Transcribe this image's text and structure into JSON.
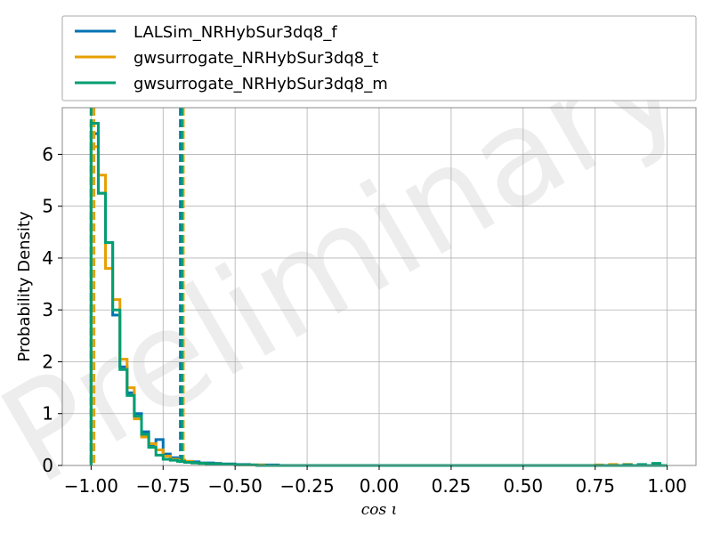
{
  "chart_data": {
    "type": "histogram",
    "xlabel": "cos ι",
    "ylabel": "Probability Density",
    "watermark": "Preliminary",
    "xlim": [
      -1.1,
      1.1
    ],
    "ylim": [
      0,
      6.9
    ],
    "xticks": [
      -1.0,
      -0.75,
      -0.5,
      -0.25,
      0.0,
      0.25,
      0.5,
      0.75,
      1.0
    ],
    "xtick_labels": [
      "−1.00",
      "−0.75",
      "−0.50",
      "−0.25",
      "0.00",
      "0.25",
      "0.50",
      "0.75",
      "1.00"
    ],
    "yticks": [
      0,
      1,
      2,
      3,
      4,
      5,
      6
    ],
    "ytick_labels": [
      "0",
      "1",
      "2",
      "3",
      "4",
      "5",
      "6"
    ],
    "grid": true,
    "legend_placement": "top, above plot",
    "bin_edges": [
      -1.0,
      -0.975,
      -0.95,
      -0.925,
      -0.9,
      -0.875,
      -0.85,
      -0.825,
      -0.8,
      -0.775,
      -0.75,
      -0.725,
      -0.7,
      -0.675,
      -0.65,
      -0.625,
      -0.6,
      -0.575,
      -0.55,
      -0.525,
      -0.5,
      -0.475,
      -0.45,
      -0.425,
      -0.4,
      -0.375,
      -0.35,
      -0.325
    ],
    "series": [
      {
        "name": "LALSim_NRHybSur3dq8_f",
        "color": "#0072b2",
        "values": [
          6.4,
          5.25,
          4.3,
          2.9,
          1.9,
          1.4,
          1.0,
          0.65,
          0.4,
          0.5,
          0.22,
          0.15,
          0.1,
          0.08,
          0.07,
          0.05,
          0.05,
          0.04,
          0.03,
          0.03,
          0.02,
          0.02,
          0.01,
          0.01,
          0.01,
          0.01,
          0.0
        ],
        "bounds_dashed": [
          -1.0,
          -0.69
        ],
        "tail": {
          "x": [
            0.8,
            0.85,
            0.9,
            0.95
          ],
          "values": [
            0.01,
            0.02,
            0.01,
            0.03
          ]
        }
      },
      {
        "name": "gwsurrogate_NRHybSur3dq8_t",
        "color": "#e69f00",
        "values": [
          6.15,
          5.6,
          3.8,
          3.2,
          2.05,
          1.5,
          0.9,
          0.55,
          0.42,
          0.3,
          0.18,
          0.12,
          0.1,
          0.08,
          0.05,
          0.04,
          0.03,
          0.03,
          0.02,
          0.02,
          0.01,
          0.01,
          0.01,
          0.01,
          0.0,
          0.0,
          0.0
        ],
        "bounds_dashed": [
          -0.99,
          -0.68
        ],
        "tail": {
          "x": [
            0.75,
            0.8,
            0.85,
            0.9,
            0.95
          ],
          "values": [
            0.01,
            0.02,
            0.02,
            0.01,
            0.02
          ]
        }
      },
      {
        "name": "gwsurrogate_NRHybSur3dq8_m",
        "color": "#009e73",
        "values": [
          6.6,
          5.25,
          4.3,
          3.0,
          1.85,
          1.35,
          0.95,
          0.6,
          0.35,
          0.2,
          0.12,
          0.1,
          0.08,
          0.06,
          0.05,
          0.04,
          0.03,
          0.03,
          0.02,
          0.02,
          0.01,
          0.01,
          0.01,
          0.0,
          0.0,
          0.0,
          0.0
        ],
        "bounds_dashed": [
          -1.0,
          -0.685
        ],
        "tail": {
          "x": [
            0.85,
            0.9,
            0.95
          ],
          "values": [
            0.01,
            0.02,
            0.04
          ]
        }
      }
    ]
  }
}
